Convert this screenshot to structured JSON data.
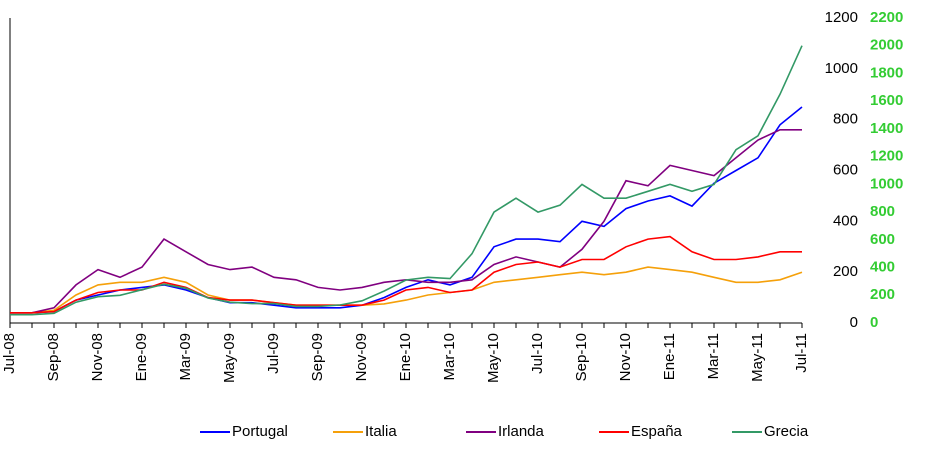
{
  "chart_data": {
    "type": "line",
    "categories": [
      "Jul-08",
      null,
      "Sep-08",
      null,
      "Nov-08",
      null,
      "Ene-09",
      null,
      "Mar-09",
      null,
      "May-09",
      null,
      "Jul-09",
      null,
      "Sep-09",
      null,
      "Nov-09",
      null,
      "Ene-10",
      null,
      "Mar-10",
      null,
      "May-10",
      null,
      "Jul-10",
      null,
      "Sep-10",
      null,
      "Nov-10",
      null,
      "Ene-11",
      null,
      "Mar-11",
      null,
      "May-11",
      null,
      "Jul-11"
    ],
    "series": [
      {
        "name": "Portugal",
        "color": "#0000ff",
        "values": [
          40,
          40,
          45,
          90,
          110,
          130,
          140,
          150,
          130,
          100,
          80,
          80,
          70,
          60,
          60,
          60,
          70,
          100,
          140,
          170,
          150,
          180,
          300,
          330,
          330,
          320,
          400,
          380,
          450,
          480,
          500,
          460,
          550,
          600,
          650,
          780,
          850
        ]
      },
      {
        "name": "Italia",
        "color": "#f5a00a",
        "values": [
          40,
          40,
          50,
          110,
          150,
          160,
          160,
          180,
          160,
          110,
          90,
          90,
          80,
          70,
          70,
          70,
          70,
          75,
          90,
          110,
          120,
          130,
          160,
          170,
          180,
          190,
          200,
          190,
          200,
          220,
          210,
          200,
          180,
          160,
          160,
          170,
          200
        ]
      },
      {
        "name": "Irlanda",
        "color": "#800080",
        "values": [
          40,
          40,
          60,
          150,
          210,
          180,
          220,
          330,
          280,
          230,
          210,
          220,
          180,
          170,
          140,
          130,
          140,
          160,
          170,
          160,
          160,
          170,
          230,
          260,
          240,
          220,
          290,
          400,
          560,
          540,
          620,
          600,
          580,
          650,
          720,
          760,
          760
        ]
      },
      {
        "name": "España",
        "color": "#ff0000",
        "values": [
          40,
          40,
          45,
          90,
          120,
          130,
          130,
          160,
          140,
          100,
          90,
          90,
          80,
          70,
          70,
          70,
          70,
          90,
          130,
          140,
          120,
          130,
          200,
          230,
          240,
          220,
          250,
          250,
          300,
          330,
          340,
          280,
          250,
          250,
          260,
          280,
          280
        ]
      },
      {
        "name": "Grecia",
        "color": "#339966",
        "axis": "y2",
        "values": [
          60,
          60,
          70,
          150,
          190,
          200,
          240,
          280,
          250,
          180,
          150,
          140,
          140,
          120,
          120,
          130,
          160,
          230,
          310,
          330,
          320,
          500,
          800,
          900,
          800,
          850,
          1000,
          900,
          900,
          950,
          1000,
          950,
          1000,
          1250,
          1350,
          1650,
          2000
        ]
      }
    ],
    "ylim": [
      0,
      1200
    ],
    "yticks": [
      0,
      200,
      400,
      600,
      800,
      1000,
      1200
    ],
    "y2lim": [
      0,
      2200
    ],
    "y2ticks": [
      0,
      200,
      400,
      600,
      800,
      1000,
      1200,
      1400,
      1600,
      1800,
      2000,
      2200
    ],
    "legend": "bottom"
  }
}
